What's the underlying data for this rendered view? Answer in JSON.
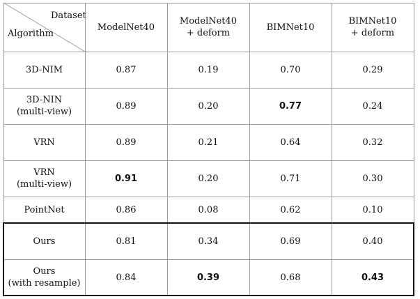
{
  "header": {
    "corner_top": "Dataset",
    "corner_bottom": "Algorithm",
    "columns": [
      "ModelNet40",
      "ModelNet40\n+ deform",
      "BIMNet10",
      "BIMNet10\n+ deform"
    ]
  },
  "rows": [
    {
      "algorithm": "3D-NIM",
      "values": [
        "0.87",
        "0.19",
        "0.70",
        "0.29"
      ],
      "bold": []
    },
    {
      "algorithm": "3D-NIN\n(multi-view)",
      "values": [
        "0.89",
        "0.20",
        "0.77",
        "0.24"
      ],
      "bold": [
        2
      ]
    },
    {
      "algorithm": "VRN",
      "values": [
        "0.89",
        "0.21",
        "0.64",
        "0.32"
      ],
      "bold": []
    },
    {
      "algorithm": "VRN\n(multi-view)",
      "values": [
        "0.91",
        "0.20",
        "0.71",
        "0.30"
      ],
      "bold": [
        0
      ]
    },
    {
      "algorithm": "PointNet",
      "values": [
        "0.86",
        "0.08",
        "0.62",
        "0.10"
      ],
      "bold": []
    },
    {
      "algorithm": "Ours",
      "values": [
        "0.81",
        "0.34",
        "0.69",
        "0.40"
      ],
      "bold": []
    },
    {
      "algorithm": "Ours\n(with resample)",
      "values": [
        "0.84",
        "0.39",
        "0.68",
        "0.43"
      ],
      "bold": [
        1,
        3
      ]
    }
  ]
}
